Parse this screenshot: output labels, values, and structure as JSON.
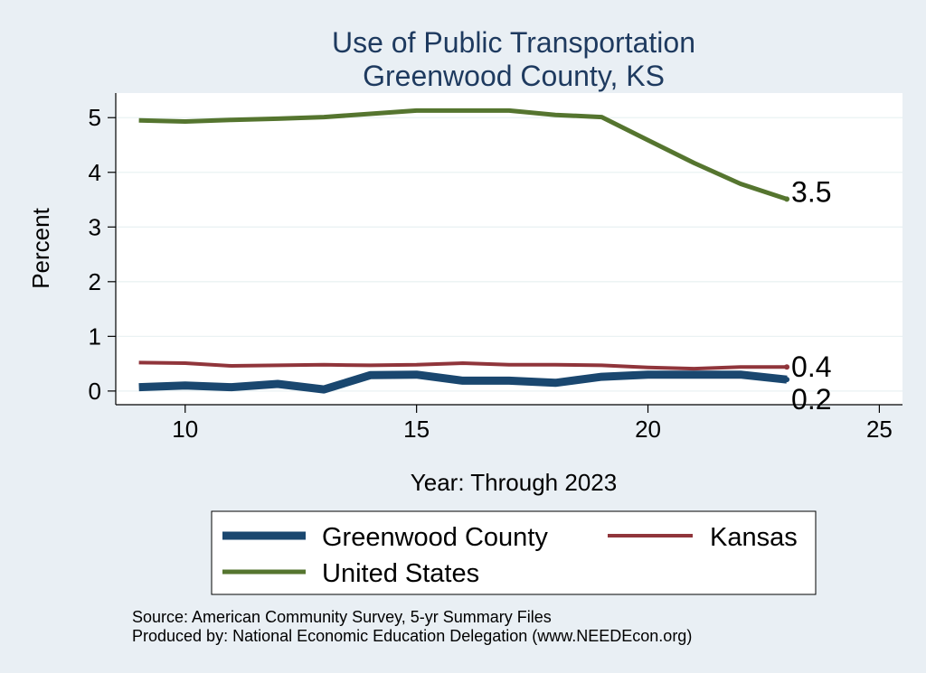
{
  "chart_data": {
    "type": "line",
    "title": "Use of Public Transportation",
    "subtitle": "Greenwood County, KS",
    "xlabel": "Year: Through 2023",
    "ylabel": "Percent",
    "xlim": [
      8.5,
      25.5
    ],
    "ylim": [
      -0.25,
      5.45
    ],
    "x_ticks": [
      10,
      15,
      20,
      25
    ],
    "y_ticks": [
      0,
      1,
      2,
      3,
      4,
      5
    ],
    "grid": true,
    "legend_position": "bottom",
    "x": [
      9,
      10,
      11,
      12,
      13,
      14,
      15,
      16,
      17,
      18,
      19,
      20,
      21,
      22,
      23
    ],
    "series": [
      {
        "name": "Greenwood County",
        "color": "#1a476f",
        "values": [
          0.07,
          0.1,
          0.07,
          0.13,
          0.03,
          0.29,
          0.3,
          0.19,
          0.19,
          0.15,
          0.26,
          0.3,
          0.3,
          0.3,
          0.21
        ],
        "end_label": "0.2"
      },
      {
        "name": "Kansas",
        "color": "#90353b",
        "values": [
          0.52,
          0.51,
          0.46,
          0.47,
          0.48,
          0.47,
          0.48,
          0.51,
          0.48,
          0.48,
          0.47,
          0.43,
          0.41,
          0.44,
          0.44
        ],
        "end_label": "0.4"
      },
      {
        "name": "United States",
        "color": "#55752f",
        "values": [
          4.95,
          4.93,
          4.96,
          4.98,
          5.01,
          5.07,
          5.13,
          5.13,
          5.13,
          5.05,
          5.01,
          4.59,
          4.17,
          3.79,
          3.51
        ],
        "end_label": "3.5"
      }
    ]
  },
  "source_line1": "Source: American Community Survey, 5-yr Summary Files",
  "source_line2": "Produced by: National Economic Education Delegation (www.NEEDEcon.org)"
}
